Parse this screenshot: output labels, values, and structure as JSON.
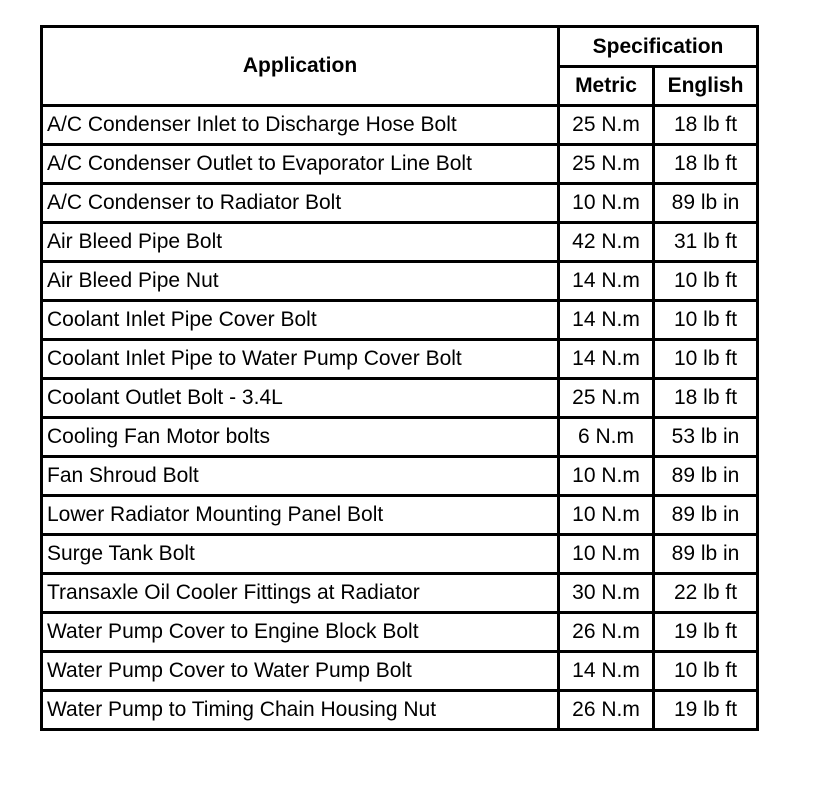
{
  "header": {
    "application": "Application",
    "specification": "Specification",
    "metric": "Metric",
    "english": "English"
  },
  "table": {
    "rows": [
      [
        "A/C Condenser Inlet to Discharge Hose Bolt",
        "25 N.m",
        "18 lb ft"
      ],
      [
        "A/C Condenser Outlet to Evaporator Line Bolt",
        "25 N.m",
        "18 lb ft"
      ],
      [
        "A/C Condenser to Radiator Bolt",
        "10 N.m",
        "89 lb in"
      ],
      [
        "Air Bleed Pipe Bolt",
        "42 N.m",
        "31 lb ft"
      ],
      [
        "Air Bleed Pipe Nut",
        "14 N.m",
        "10 lb ft"
      ],
      [
        "Coolant Inlet Pipe Cover Bolt",
        "14 N.m",
        "10 lb ft"
      ],
      [
        "Coolant Inlet Pipe to Water Pump Cover Bolt",
        "14 N.m",
        "10 lb ft"
      ],
      [
        "Coolant Outlet Bolt - 3.4L",
        "25 N.m",
        "18 lb ft"
      ],
      [
        "Cooling Fan Motor bolts",
        "6 N.m",
        "53 lb in"
      ],
      [
        "Fan Shroud Bolt",
        "10 N.m",
        "89 lb in"
      ],
      [
        "Lower Radiator Mounting Panel Bolt",
        "10 N.m",
        "89 lb in"
      ],
      [
        "Surge Tank Bolt",
        "10 N.m",
        "89 lb in"
      ],
      [
        "Transaxle Oil Cooler Fittings at Radiator",
        "30 N.m",
        "22 lb ft"
      ],
      [
        "Water Pump Cover to Engine Block Bolt",
        "26 N.m",
        "19 lb ft"
      ],
      [
        "Water Pump Cover to Water Pump Bolt",
        "14 N.m",
        "10 lb ft"
      ],
      [
        "Water Pump to Timing Chain Housing Nut",
        "26 N.m",
        "19 lb ft"
      ]
    ]
  }
}
